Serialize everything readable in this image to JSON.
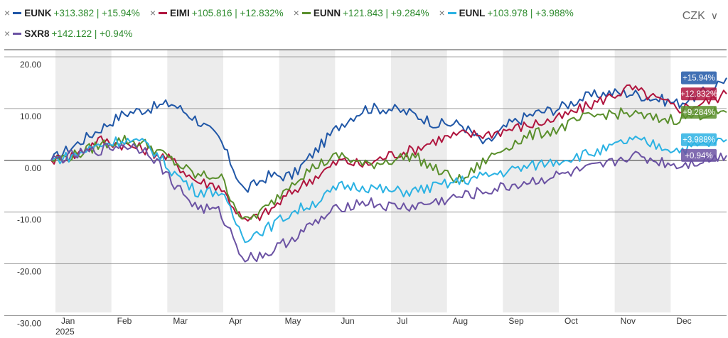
{
  "currency": {
    "label": "CZK"
  },
  "legend": [
    {
      "name": "EUNK",
      "value": "+313.382",
      "change": "+15.94%",
      "color": "#2057a7"
    },
    {
      "name": "EIMI",
      "value": "+105.816",
      "change": "+12.832%",
      "color": "#b0153e"
    },
    {
      "name": "EUNN",
      "value": "+121.843",
      "change": "+9.284%",
      "color": "#5a8f2c"
    },
    {
      "name": "EUNL",
      "value": "+103.978",
      "change": "+3.988%",
      "color": "#2bb2e3"
    },
    {
      "name": "SXR8",
      "value": "+142.122",
      "change": "+0.94%",
      "color": "#6b52a3"
    }
  ],
  "chart_data": {
    "type": "line",
    "x_axis": {
      "months": [
        "Jan",
        "Feb",
        "Mar",
        "Apr",
        "May",
        "Jun",
        "Jul",
        "Aug",
        "Sep",
        "Oct",
        "Nov",
        "Dec"
      ],
      "year_label": "2025"
    },
    "y_axis": {
      "ticks": [
        20,
        10,
        0,
        -10,
        -20,
        -30
      ],
      "tick_labels": [
        "20.00",
        "10.00",
        "0.00",
        "-10.00",
        "-20.00",
        "-30.00"
      ],
      "ylim": [
        -30,
        20
      ]
    },
    "grid": true,
    "x": [
      "Jan 2",
      "Jan 15",
      "Feb 1",
      "Feb 15",
      "Mar 1",
      "Mar 10",
      "Mar 20",
      "Apr 1",
      "Apr 4",
      "Apr 8",
      "Apr 15",
      "Apr 25",
      "May 5",
      "May 20",
      "Jun 1",
      "Jun 15",
      "Jul 1",
      "Jul 15",
      "Aug 1",
      "Aug 15",
      "Sep 1",
      "Sep 15",
      "Oct 1",
      "Oct 15",
      "Nov 1",
      "Nov 15",
      "Dec 1",
      "Dec 15",
      "Dec 31"
    ],
    "series": [
      {
        "name": "EUNK",
        "change_label": "+15.94%",
        "values": [
          0,
          3,
          6,
          9,
          10,
          11,
          8,
          4,
          -6,
          -3,
          -3,
          2,
          7,
          10,
          10,
          9,
          7,
          7,
          3,
          7,
          9,
          10,
          12,
          13,
          13,
          12,
          11,
          13,
          15.94
        ]
      },
      {
        "name": "EIMI",
        "change_label": "+12.832%",
        "values": [
          0,
          1,
          4,
          3,
          2,
          0,
          -4,
          -5,
          -12,
          -10,
          -6,
          -3,
          0,
          -1,
          1,
          2,
          4,
          5,
          5,
          6,
          7,
          8,
          10,
          12,
          14,
          12,
          10,
          11,
          12.832
        ]
      },
      {
        "name": "EUNN",
        "change_label": "+9.284%",
        "values": [
          0,
          1,
          3,
          4,
          3,
          0,
          -3,
          -3,
          -12,
          -9,
          -4,
          -1,
          1,
          -1,
          0,
          1,
          -2,
          -4,
          0,
          3,
          5,
          6,
          8,
          9,
          9,
          8,
          8,
          9,
          9.284
        ]
      },
      {
        "name": "EUNL",
        "change_label": "+3.988%",
        "values": [
          0,
          1,
          3,
          4,
          3,
          -2,
          -6,
          -6,
          -15,
          -13,
          -10,
          -8,
          -5,
          -5,
          -6,
          -6,
          -5,
          -4,
          -3,
          -2,
          -1,
          0,
          1,
          2,
          4,
          3,
          2,
          3,
          3.988
        ]
      },
      {
        "name": "SXR8",
        "change_label": "+0.94%",
        "values": [
          0,
          1,
          2,
          3,
          2,
          -4,
          -9,
          -10,
          -19,
          -18,
          -15,
          -12,
          -9,
          -8,
          -9,
          -9,
          -8,
          -7,
          -6,
          -5,
          -4,
          -3,
          -2,
          -1,
          1,
          0,
          -1,
          0,
          0.94
        ]
      }
    ]
  }
}
